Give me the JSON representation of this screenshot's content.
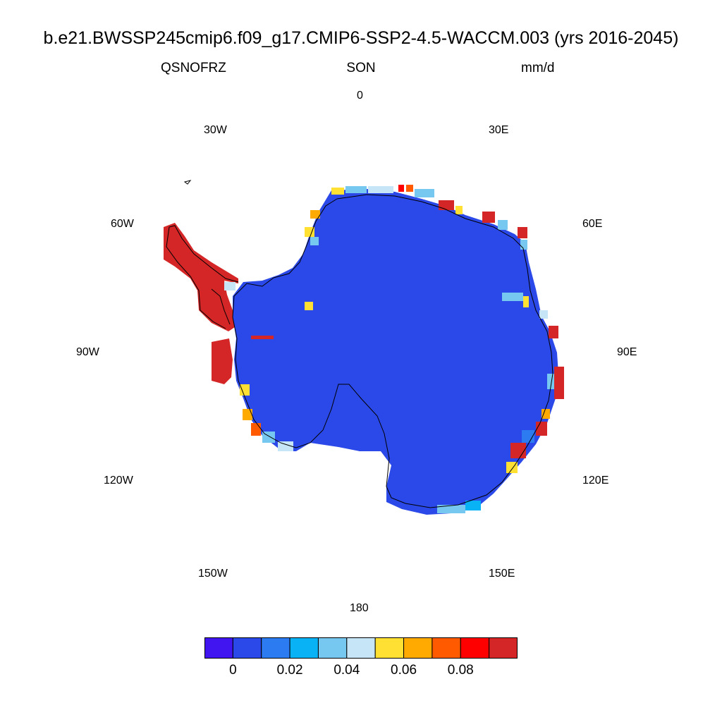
{
  "title": "b.e21.BWSSP245cmip6.f09_g17.CMIP6-SSP2-4.5-WACCM.003 (yrs 2016-2045)",
  "subtitle": {
    "variable": "QSNOFRZ",
    "season": "SON",
    "units": "mm/d"
  },
  "longitude_labels": {
    "lon_0": "0",
    "lon_30e": "30E",
    "lon_60e": "60E",
    "lon_90e": "90E",
    "lon_120e": "120E",
    "lon_150e": "150E",
    "lon_180": "180",
    "lon_150w": "150W",
    "lon_120w": "120W",
    "lon_90w": "90W",
    "lon_60w": "60W",
    "lon_30w": "30W"
  },
  "colorbar": {
    "colors": [
      "#4015f0",
      "#2b49e8",
      "#2c7bf0",
      "#08b2f5",
      "#77c8f0",
      "#c6e6f8",
      "#ffe033",
      "#ffaa00",
      "#ff5a00",
      "#ff0000",
      "#d42626"
    ],
    "labels": [
      "0",
      "0.02",
      "0.04",
      "0.06",
      "0.08"
    ]
  },
  "map_colors": {
    "ice_sheet": "#2b49e8",
    "peninsula": "#d42626",
    "coastline": "#000000"
  }
}
